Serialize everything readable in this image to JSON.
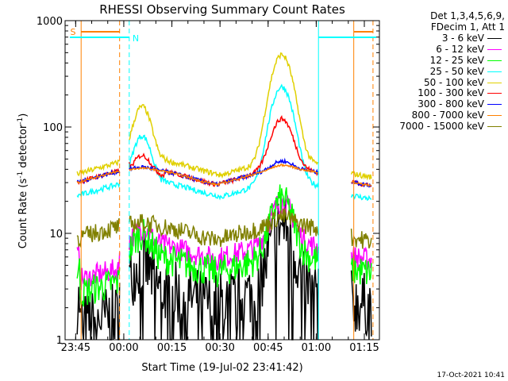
{
  "chart_data": {
    "type": "line",
    "title": "RHESSI Observing Summary Count Rates",
    "xlabel": "Start Time (19-Jul-02 23:41:42)",
    "ylabel": "Count Rate (s⁻¹ detector⁻¹)",
    "ylabel_parts": {
      "main": "Count Rate (s",
      "sup1": "-1",
      "mid": " detector",
      "sup2": "-1",
      "end": ")"
    },
    "xlim_minutes": [
      0,
      98
    ],
    "ylim": [
      1,
      1000
    ],
    "yscale": "log",
    "x_ticks": [
      {
        "label": "23:45",
        "minute": 3.3
      },
      {
        "label": "00:00",
        "minute": 18.3
      },
      {
        "label": "00:15",
        "minute": 33.3
      },
      {
        "label": "00:30",
        "minute": 48.3
      },
      {
        "label": "00:45",
        "minute": 63.3
      },
      {
        "label": "01:00",
        "minute": 78.3
      },
      {
        "label": "01:15",
        "minute": 93.3
      }
    ],
    "y_ticks": [
      {
        "label": "1",
        "value": 1
      },
      {
        "label": "10",
        "value": 10
      },
      {
        "label": "100",
        "value": 100
      },
      {
        "label": "1000",
        "value": 1000
      }
    ],
    "legend_title": [
      "Det 1,3,4,5,6,9,",
      "FDecim 1, Att 1"
    ],
    "series": [
      {
        "name": "3 - 6 keV",
        "color": "#000000"
      },
      {
        "name": "6 - 12 keV",
        "color": "#ff00ff"
      },
      {
        "name": "12 - 25 keV",
        "color": "#00ff00"
      },
      {
        "name": "25 - 50 keV",
        "color": "#00ffff"
      },
      {
        "name": "50 - 100 keV",
        "color": "#e0d000"
      },
      {
        "name": "100 - 300 keV",
        "color": "#ff0000"
      },
      {
        "name": "300 - 800 keV",
        "color": "#0000ff"
      },
      {
        "name": "800 - 7000 keV",
        "color": "#ff8000"
      },
      {
        "name": "7000 - 15000 keV",
        "color": "#808000"
      }
    ],
    "annotations": [
      {
        "label": "S",
        "color": "#ff8000"
      },
      {
        "label": "N",
        "color": "#00ffff"
      }
    ]
  },
  "timestamp": "17-Oct-2021 10:41"
}
